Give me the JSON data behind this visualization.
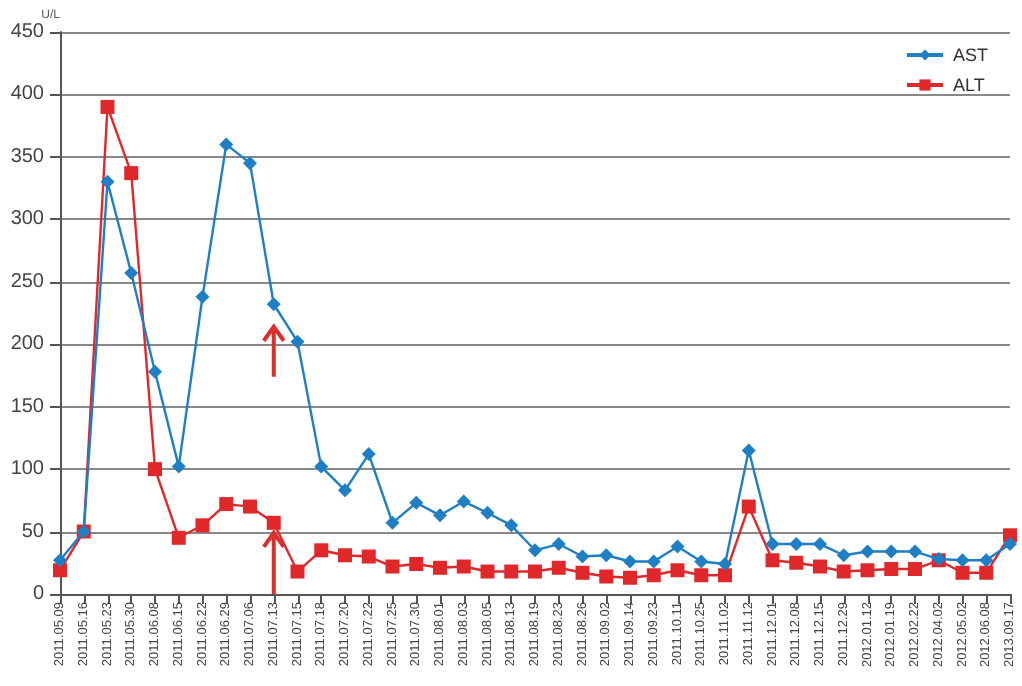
{
  "chart_data": {
    "type": "line",
    "ylabel": "U/L",
    "categories": [
      "2011.05.09",
      "2011.05.16",
      "2011.05.23",
      "2011.05.30",
      "2011.06.08",
      "2011.06.15",
      "2011.06.22",
      "2011.06.29",
      "2011.07.06",
      "2011.07.13",
      "2011.07.15",
      "2011.07.18",
      "2011.07.20",
      "2011.07.22",
      "2011.07.25",
      "2011.07.30",
      "2011.08.01",
      "2011.08.03",
      "2011.08.05",
      "2011.08.13",
      "2011.08.19",
      "2011.08.23",
      "2011.08.26",
      "2011.09.02",
      "2011.09.14",
      "2011.09.23",
      "2011.10.11",
      "2011.10.25",
      "2011.11.02",
      "2011.11.12",
      "2011.12.01",
      "2011.12.08",
      "2011.12.15",
      "2011.12.29",
      "2012.01.12",
      "2012.01.19",
      "2012.02.22",
      "2012.04.02",
      "2012.05.02",
      "2012.06.08",
      "2013.09.17"
    ],
    "series": [
      {
        "name": "AST",
        "color": "#1f7fc4",
        "marker": "diamond",
        "values": [
          27,
          50,
          330,
          257,
          178,
          102,
          238,
          360,
          345,
          232,
          202,
          102,
          83,
          112,
          57,
          73,
          63,
          74,
          65,
          55,
          35,
          40,
          30,
          31,
          26,
          26,
          38,
          26,
          24,
          115,
          40,
          40,
          40,
          31,
          34,
          34,
          34,
          28,
          27,
          27,
          40
        ]
      },
      {
        "name": "ALT",
        "color": "#e0282a",
        "marker": "square",
        "values": [
          19,
          50,
          390,
          337,
          100,
          45,
          55,
          72,
          70,
          57,
          18,
          35,
          31,
          30,
          22,
          24,
          21,
          22,
          18,
          18,
          18,
          21,
          17,
          14,
          13,
          15,
          19,
          15,
          15,
          70,
          27,
          25,
          22,
          18,
          19,
          20,
          20,
          27,
          17,
          17,
          47
        ]
      }
    ],
    "ylim": [
      0,
      450
    ],
    "yticks": [
      0,
      50,
      100,
      150,
      200,
      250,
      300,
      350,
      400,
      450
    ],
    "grid": "y",
    "legend": "top right"
  }
}
